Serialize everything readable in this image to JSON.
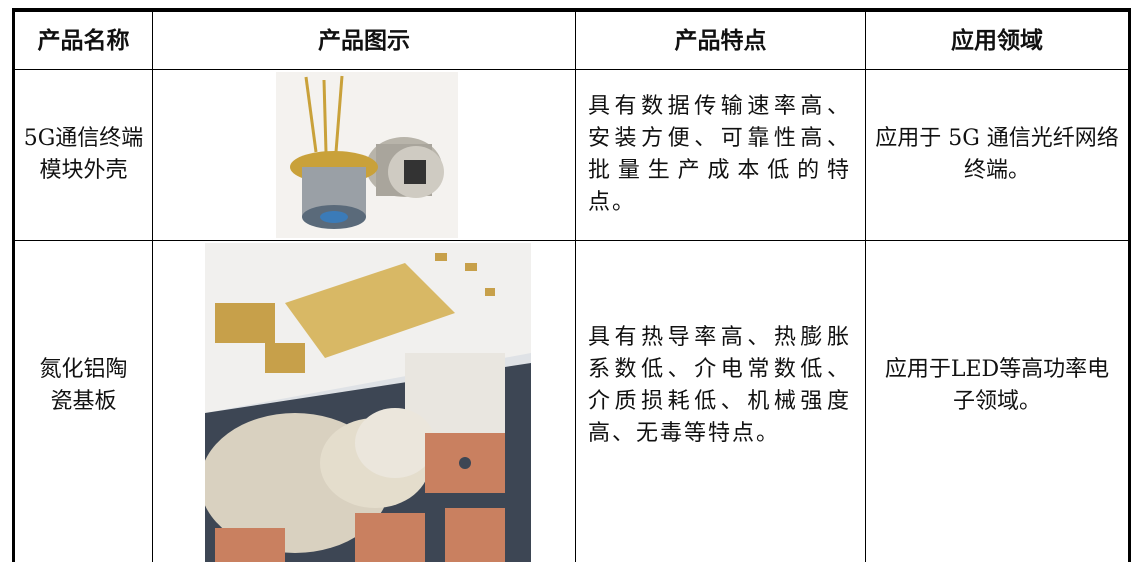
{
  "table": {
    "header": [
      "产品名称",
      "产品图示",
      "产品特点",
      "应用领域"
    ],
    "rows": [
      {
        "name": "5G通信终端模块外壳",
        "features": "具有数据传输速率高、安装方便、可靠性高、批量生产成本低的特点。",
        "application": "应用于 5G 通信光纤网络终端。"
      },
      {
        "name": "氮化铝陶瓷基板",
        "features": "具有热导率高、热膨胀系数低、介电常数低、介质损耗低、机械强度高、无毒等特点。",
        "application": "应用于LED等高功率电子领域。"
      }
    ]
  }
}
